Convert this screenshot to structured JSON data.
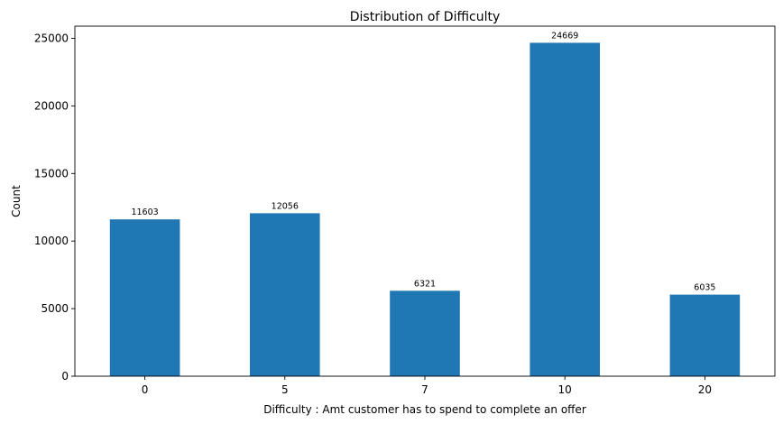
{
  "chart_data": {
    "type": "bar",
    "title": "Distribution of Difficulty",
    "xlabel": "Difficulty : Amt customer has to spend to complete an offer",
    "ylabel": "Count",
    "categories": [
      "0",
      "5",
      "7",
      "10",
      "20"
    ],
    "values": [
      11603,
      12056,
      6321,
      24669,
      6035
    ],
    "data_labels": [
      "11603",
      "12056",
      "6321",
      "24669",
      "6035"
    ],
    "ylim": [
      0,
      25900
    ],
    "yticks": [
      0,
      5000,
      10000,
      15000,
      20000,
      25000
    ],
    "ytick_labels": [
      "0",
      "5000",
      "10000",
      "15000",
      "20000",
      "25000"
    ],
    "grid": false,
    "legend": "none",
    "colors": {
      "bar": "#1f77b4"
    }
  }
}
